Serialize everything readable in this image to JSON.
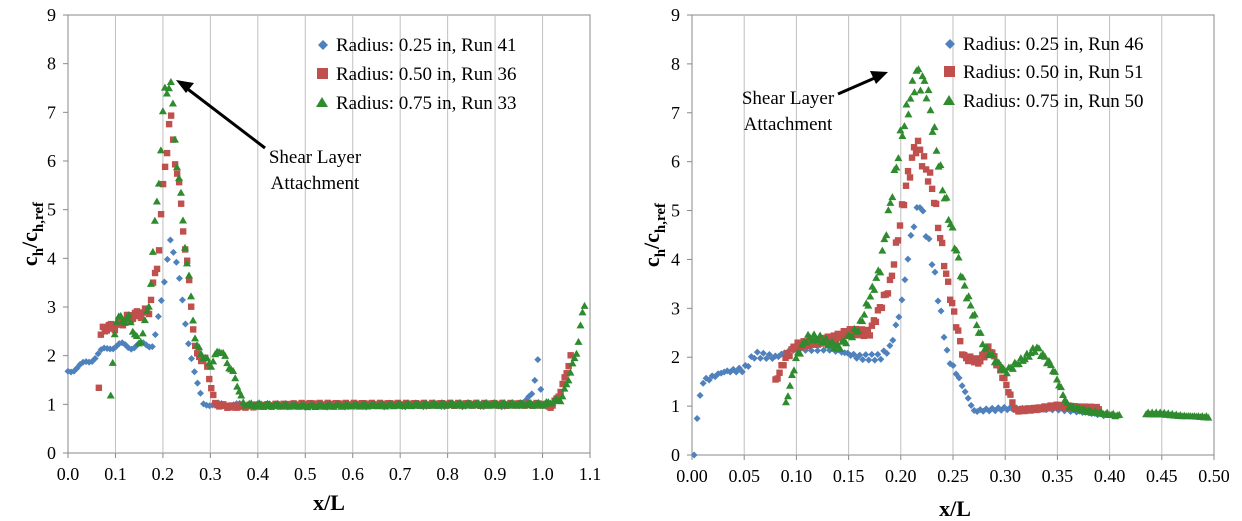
{
  "chart_data": [
    {
      "type": "scatter",
      "xlabel": "x/L",
      "ylabel": "c_h/c_h,ref",
      "ylabel_main": "c",
      "ylabel_sub": "h",
      "ylabel_slash": "/c",
      "ylabel_sub2": "h,ref",
      "xlim": [
        0.0,
        1.1
      ],
      "ylim": [
        0,
        9
      ],
      "xticks": [
        "0.0",
        "0.1",
        "0.2",
        "0.3",
        "0.4",
        "0.5",
        "0.6",
        "0.7",
        "0.8",
        "0.9",
        "1.0",
        "1.1"
      ],
      "xtick_values": [
        0,
        0.1,
        0.2,
        0.3,
        0.4,
        0.5,
        0.6,
        0.7,
        0.8,
        0.9,
        1.0,
        1.1
      ],
      "yticks": [
        "0",
        "1",
        "2",
        "3",
        "4",
        "5",
        "6",
        "7",
        "8",
        "9"
      ],
      "ytick_values": [
        0,
        1,
        2,
        3,
        4,
        5,
        6,
        7,
        8,
        9
      ],
      "grid": "vertical",
      "legend_position": "top-right",
      "annotation": {
        "lines": [
          "Shear Layer",
          "Attachment"
        ],
        "arrow_to": [
          0.215,
          7.7
        ]
      },
      "series": [
        {
          "name": "Radius: 0.25 in, Run 41",
          "color": "#4F81BD",
          "marker": "diamond",
          "curve": [
            [
              0.0,
              1.68
            ],
            [
              0.03,
              1.8
            ],
            [
              0.06,
              2.0
            ],
            [
              0.09,
              2.2
            ],
            [
              0.12,
              2.2
            ],
            [
              0.15,
              2.2
            ],
            [
              0.18,
              2.25
            ],
            [
              0.2,
              3.2
            ],
            [
              0.215,
              4.55
            ],
            [
              0.23,
              3.8
            ],
            [
              0.25,
              2.5
            ],
            [
              0.27,
              1.5
            ],
            [
              0.285,
              1.0
            ],
            [
              0.3,
              1.0
            ],
            [
              0.5,
              0.97
            ],
            [
              0.8,
              0.98
            ],
            [
              0.95,
              0.98
            ],
            [
              0.98,
              1.2
            ],
            [
              0.99,
              1.95
            ],
            [
              1.0,
              1.0
            ]
          ],
          "density": 3
        },
        {
          "name": "Radius: 0.50 in, Run 36",
          "color": "#C0504D",
          "marker": "square",
          "curve": [
            [
              0.065,
              1.35
            ],
            [
              0.07,
              2.55
            ],
            [
              0.1,
              2.6
            ],
            [
              0.13,
              2.8
            ],
            [
              0.17,
              2.9
            ],
            [
              0.19,
              4.0
            ],
            [
              0.205,
              6.0
            ],
            [
              0.215,
              6.9
            ],
            [
              0.23,
              5.8
            ],
            [
              0.25,
              4.0
            ],
            [
              0.27,
              2.0
            ],
            [
              0.29,
              1.9
            ],
            [
              0.31,
              1.0
            ],
            [
              0.34,
              0.95
            ],
            [
              0.5,
              1.0
            ],
            [
              0.8,
              1.0
            ],
            [
              1.0,
              1.0
            ],
            [
              1.02,
              0.95
            ],
            [
              1.04,
              1.3
            ],
            [
              1.06,
              2.0
            ]
          ],
          "density": 2
        },
        {
          "name": "Radius: 0.75 in, Run 33",
          "color": "#2E8B2E",
          "marker": "triangle",
          "curve": [
            [
              0.09,
              1.15
            ],
            [
              0.1,
              2.75
            ],
            [
              0.13,
              2.75
            ],
            [
              0.15,
              2.2
            ],
            [
              0.17,
              3.0
            ],
            [
              0.19,
              5.5
            ],
            [
              0.205,
              7.5
            ],
            [
              0.215,
              7.7
            ],
            [
              0.23,
              6.0
            ],
            [
              0.25,
              4.0
            ],
            [
              0.27,
              2.2
            ],
            [
              0.3,
              1.8
            ],
            [
              0.32,
              2.15
            ],
            [
              0.35,
              1.6
            ],
            [
              0.37,
              1.0
            ],
            [
              0.5,
              0.97
            ],
            [
              0.8,
              1.0
            ],
            [
              1.0,
              1.0
            ],
            [
              1.04,
              1.1
            ],
            [
              1.07,
              2.0
            ],
            [
              1.09,
              3.15
            ]
          ],
          "density": 2
        }
      ]
    },
    {
      "type": "scatter",
      "xlabel": "x/L",
      "ylabel": "c_h/c_h,ref",
      "ylabel_main": "c",
      "ylabel_sub": "h",
      "ylabel_slash": "/c",
      "ylabel_sub2": "h,ref",
      "xlim": [
        0.0,
        0.5
      ],
      "ylim": [
        0,
        9
      ],
      "xticks": [
        "0.00",
        "0.05",
        "0.10",
        "0.15",
        "0.20",
        "0.25",
        "0.30",
        "0.35",
        "0.40",
        "0.45",
        "0.50"
      ],
      "xtick_values": [
        0,
        0.05,
        0.1,
        0.15,
        0.2,
        0.25,
        0.3,
        0.35,
        0.4,
        0.45,
        0.5
      ],
      "yticks": [
        "0",
        "1",
        "2",
        "3",
        "4",
        "5",
        "6",
        "7",
        "8",
        "9"
      ],
      "ytick_values": [
        0,
        1,
        2,
        3,
        4,
        5,
        6,
        7,
        8,
        9
      ],
      "grid": "vertical",
      "legend_position": "top-right",
      "annotation": {
        "lines": [
          "Shear Layer",
          "Attachment"
        ],
        "arrow_to": [
          0.21,
          7.7
        ]
      },
      "series": [
        {
          "name": "Radius: 0.25 in, Run 46",
          "color": "#4F81BD",
          "marker": "diamond",
          "curve": [
            [
              0.002,
              0.0
            ],
            [
              0.005,
              0.8
            ],
            [
              0.01,
              1.5
            ],
            [
              0.03,
              1.7
            ],
            [
              0.05,
              1.75
            ],
            [
              0.06,
              2.05
            ],
            [
              0.08,
              2.0
            ],
            [
              0.1,
              2.2
            ],
            [
              0.13,
              2.2
            ],
            [
              0.16,
              2.0
            ],
            [
              0.18,
              2.0
            ],
            [
              0.19,
              2.2
            ],
            [
              0.2,
              3.0
            ],
            [
              0.21,
              4.5
            ],
            [
              0.218,
              5.2
            ],
            [
              0.23,
              4.0
            ],
            [
              0.245,
              2.0
            ],
            [
              0.255,
              1.6
            ],
            [
              0.27,
              0.9
            ],
            [
              0.3,
              0.95
            ],
            [
              0.35,
              0.95
            ],
            [
              0.4,
              0.8
            ]
          ],
          "density": 3
        },
        {
          "name": "Radius: 0.50 in, Run 51",
          "color": "#C0504D",
          "marker": "square",
          "curve": [
            [
              0.08,
              1.5
            ],
            [
              0.09,
              2.0
            ],
            [
              0.1,
              2.25
            ],
            [
              0.12,
              2.3
            ],
            [
              0.15,
              2.5
            ],
            [
              0.17,
              2.5
            ],
            [
              0.19,
              3.5
            ],
            [
              0.205,
              5.5
            ],
            [
              0.215,
              6.4
            ],
            [
              0.23,
              5.5
            ],
            [
              0.245,
              3.5
            ],
            [
              0.26,
              2.0
            ],
            [
              0.275,
              1.9
            ],
            [
              0.285,
              2.2
            ],
            [
              0.3,
              1.5
            ],
            [
              0.31,
              0.9
            ],
            [
              0.35,
              1.0
            ],
            [
              0.39,
              0.95
            ]
          ],
          "density": 2
        },
        {
          "name": "Radius: 0.75 in, Run 50",
          "color": "#2E8B2E",
          "marker": "triangle",
          "curve": [
            [
              0.09,
              1.05
            ],
            [
              0.1,
              2.0
            ],
            [
              0.11,
              2.4
            ],
            [
              0.12,
              2.4
            ],
            [
              0.14,
              2.2
            ],
            [
              0.16,
              2.6
            ],
            [
              0.18,
              3.8
            ],
            [
              0.2,
              6.5
            ],
            [
              0.215,
              7.8
            ],
            [
              0.225,
              7.5
            ],
            [
              0.24,
              5.5
            ],
            [
              0.26,
              3.5
            ],
            [
              0.28,
              2.2
            ],
            [
              0.3,
              1.7
            ],
            [
              0.32,
              2.0
            ],
            [
              0.33,
              2.2
            ],
            [
              0.345,
              1.8
            ],
            [
              0.36,
              1.0
            ],
            [
              0.38,
              0.9
            ],
            [
              0.41,
              0.8
            ]
          ],
          "segments": [
            [
              0.09,
              0.415
            ],
            [
              0.435,
              0.495
            ]
          ],
          "tail": [
            [
              0.435,
              0.85
            ],
            [
              0.45,
              0.85
            ],
            [
              0.47,
              0.8
            ],
            [
              0.495,
              0.78
            ]
          ],
          "density": 2
        }
      ]
    }
  ]
}
